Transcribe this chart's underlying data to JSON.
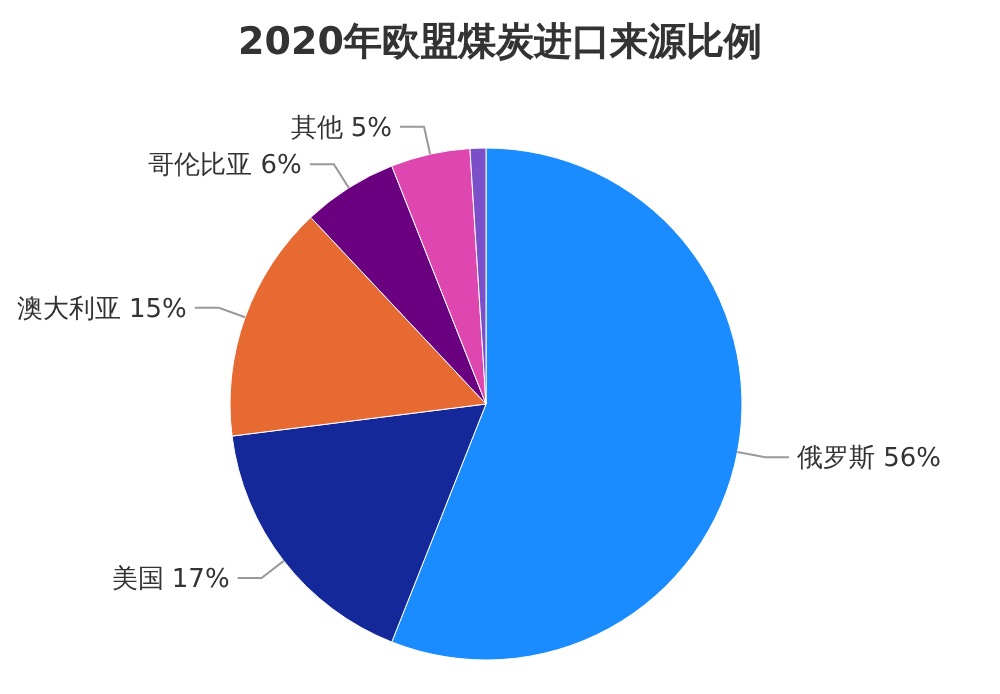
{
  "chart_data": {
    "type": "pie",
    "title": "2020年欧盟煤炭进口来源比例",
    "categories": [
      "俄罗斯",
      "美国",
      "澳大利亚",
      "哥伦比亚",
      "其他",
      null
    ],
    "values": [
      56,
      17,
      15,
      6,
      5,
      1
    ],
    "value_labels": [
      "56%",
      "17%",
      "15%",
      "6%",
      "5%",
      null
    ],
    "colors": [
      "#1a8cff",
      "#15289a",
      "#e86a33",
      "#6a0080",
      "#de47b0",
      "#7a4fc8"
    ]
  }
}
